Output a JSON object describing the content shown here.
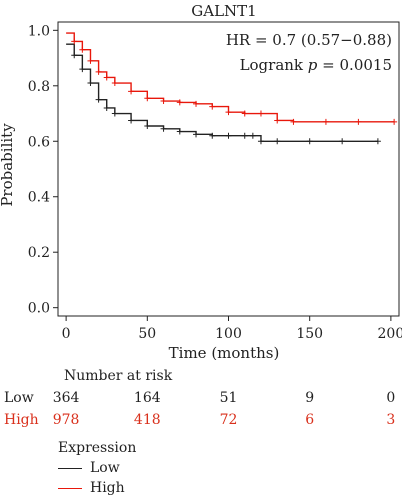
{
  "chart_data": {
    "type": "line",
    "title": "GALNT1",
    "xlabel": "Time (months)",
    "ylabel": "Probability",
    "xlim": [
      -5,
      205
    ],
    "ylim": [
      -0.03,
      1.03
    ],
    "xticks": [
      0,
      50,
      100,
      150,
      200
    ],
    "yticks": [
      0.0,
      0.2,
      0.4,
      0.6,
      0.8,
      1.0
    ],
    "annotations": {
      "hr": "HR = 0.7 (0.57−0.88)",
      "logrank_prefix": "Logrank ",
      "logrank_p": "p",
      "logrank_value": " = 0.0015"
    },
    "series": [
      {
        "name": "Low",
        "color": "#222222",
        "x": [
          0,
          5,
          10,
          15,
          20,
          25,
          30,
          40,
          50,
          60,
          70,
          80,
          90,
          100,
          110,
          115,
          120,
          130,
          150,
          170,
          192
        ],
        "y": [
          0.95,
          0.91,
          0.86,
          0.81,
          0.75,
          0.72,
          0.7,
          0.675,
          0.655,
          0.645,
          0.635,
          0.625,
          0.62,
          0.62,
          0.62,
          0.62,
          0.6,
          0.6,
          0.6,
          0.6,
          0.6
        ]
      },
      {
        "name": "High",
        "color": "#e8170b",
        "x": [
          0,
          5,
          10,
          15,
          20,
          25,
          30,
          40,
          50,
          60,
          70,
          80,
          90,
          100,
          110,
          120,
          130,
          140,
          160,
          180,
          202
        ],
        "y": [
          0.99,
          0.96,
          0.93,
          0.89,
          0.85,
          0.83,
          0.81,
          0.78,
          0.755,
          0.745,
          0.74,
          0.735,
          0.725,
          0.705,
          0.7,
          0.7,
          0.675,
          0.67,
          0.67,
          0.67,
          0.67
        ]
      }
    ]
  },
  "risk_table": {
    "title": "Number at risk",
    "times": [
      0,
      50,
      100,
      150,
      200
    ],
    "rows": [
      {
        "label": "Low",
        "values": [
          "364",
          "164",
          "51",
          "9",
          "0"
        ]
      },
      {
        "label": "High",
        "values": [
          "978",
          "418",
          "72",
          "6",
          "3"
        ]
      }
    ]
  },
  "legend": {
    "title": "Expression",
    "items": [
      {
        "label": "Low",
        "color": "#222222"
      },
      {
        "label": "High",
        "color": "#e8170b"
      }
    ]
  }
}
